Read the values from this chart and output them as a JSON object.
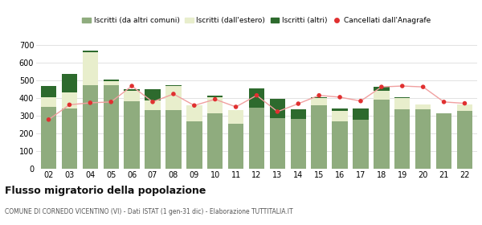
{
  "years": [
    "02",
    "03",
    "04",
    "05",
    "06",
    "07",
    "08",
    "09",
    "10",
    "11",
    "12",
    "13",
    "14",
    "15",
    "16",
    "17",
    "18",
    "19",
    "20",
    "21",
    "22"
  ],
  "iscritti_comuni": [
    350,
    340,
    475,
    475,
    380,
    330,
    330,
    270,
    315,
    255,
    345,
    285,
    280,
    360,
    268,
    278,
    390,
    335,
    335,
    315,
    328
  ],
  "iscritti_estero": [
    55,
    90,
    185,
    20,
    60,
    55,
    140,
    90,
    90,
    75,
    0,
    0,
    0,
    40,
    60,
    0,
    50,
    65,
    30,
    0,
    35
  ],
  "iscritti_altri": [
    65,
    105,
    10,
    10,
    10,
    65,
    5,
    0,
    10,
    0,
    110,
    110,
    55,
    5,
    15,
    65,
    25,
    5,
    0,
    0,
    0
  ],
  "cancellati": [
    278,
    362,
    373,
    378,
    468,
    378,
    423,
    358,
    393,
    350,
    415,
    323,
    368,
    415,
    405,
    383,
    463,
    468,
    463,
    378,
    370
  ],
  "color_comuni": "#8fac7e",
  "color_estero": "#e8eecc",
  "color_altri": "#2d6a2d",
  "color_cancellati": "#e03030",
  "color_line": "#f0a0a0",
  "ylim_max": 700,
  "yticks": [
    0,
    100,
    200,
    300,
    400,
    500,
    600,
    700
  ],
  "title": "Flusso migratorio della popolazione",
  "subtitle": "COMUNE DI CORNEDO VICENTINO (VI) - Dati ISTAT (1 gen-31 dic) - Elaborazione TUTTITALIA.IT",
  "legend_labels": [
    "Iscritti (da altri comuni)",
    "Iscritti (dall'estero)",
    "Iscritti (altri)",
    "Cancellati dall'Anagrafe"
  ],
  "bg_color": "#ffffff",
  "grid_color": "#dddddd"
}
